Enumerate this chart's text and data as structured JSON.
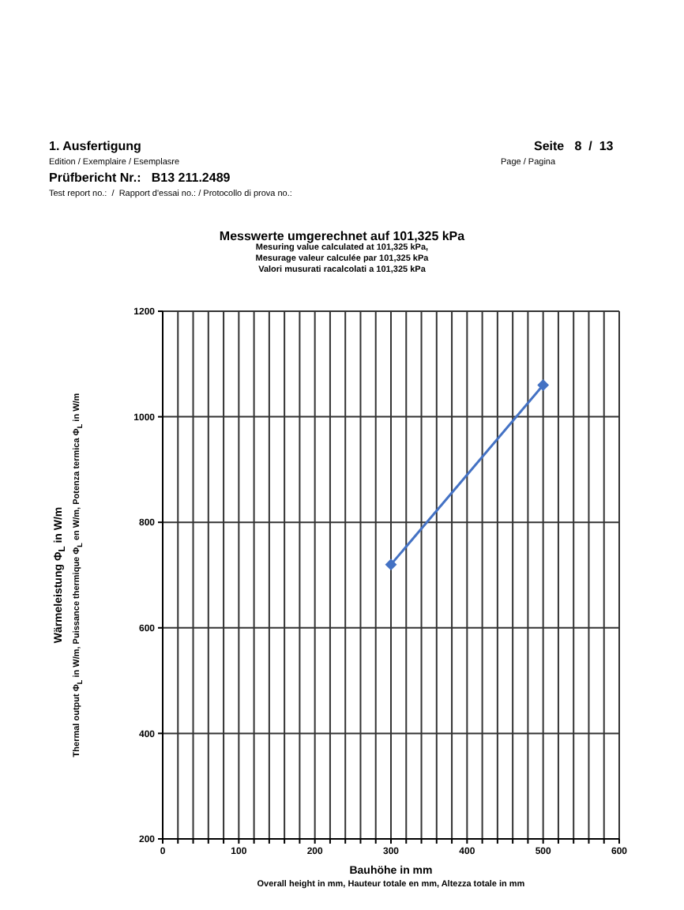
{
  "chart_data": {
    "type": "line",
    "title": "Messwerte umgerechnet auf 101,325 kPa",
    "subtitle": "Mesuring value calculated at 101,325 kPa,\nMesurage valeur calculée par 101,325 kPa\nValori musurati racalcolati a 101,325 kPa",
    "annotations": [
      "1. Ausfertigung",
      "Edition / Exemplaire / Esemplasre",
      "Prüfbericht Nr.:   B13 211.2489",
      "Test report no.:  /  Rapport d'essai no.: / Protocollo di prova no.:",
      "Seite   8  /  13",
      "Page / Pagina"
    ],
    "xlabel": "Bauhöhe in mm\nOverall height in mm, Hauteur totale en mm, Altezza totale in mm",
    "ylabel": "Wärmeleistung Φ$_{L}$ in W/m\nThermal output Φ$_{L}$ in W/m, Puissance thermique Φ$_{L}$ en W/m, Potenza termica Φ$_{L}$ in W/m",
    "x": [
      300,
      500
    ],
    "series": [
      {
        "color": "#4472c4",
        "values": [
          720,
          1060
        ]
      }
    ],
    "xlim": [
      0,
      600
    ],
    "xticks": [
      0,
      {
        "value": 20,
        "label": null
      },
      {
        "value": 40,
        "label": null
      },
      {
        "value": 60,
        "label": null
      },
      {
        "value": 80,
        "label": null
      },
      100,
      {
        "value": 120,
        "label": null
      },
      {
        "value": 140,
        "label": null
      },
      {
        "value": 160,
        "label": null
      },
      {
        "value": 180,
        "label": null
      },
      200,
      {
        "value": 220,
        "label": null
      },
      {
        "value": 240,
        "label": null
      },
      {
        "value": 260,
        "label": null
      },
      {
        "value": 280,
        "label": null
      },
      300,
      {
        "value": 320,
        "label": null
      },
      {
        "value": 340,
        "label": null
      },
      {
        "value": 360,
        "label": null
      },
      {
        "value": 380,
        "label": null
      },
      400,
      {
        "value": 420,
        "label": null
      },
      {
        "value": 440,
        "label": null
      },
      {
        "value": 460,
        "label": null
      },
      {
        "value": 480,
        "label": null
      },
      500,
      {
        "value": 520,
        "label": null
      },
      {
        "value": 540,
        "label": null
      },
      {
        "value": 560,
        "label": null
      },
      {
        "value": 580,
        "label": null
      },
      600
    ],
    "ylim": [
      200,
      1200
    ],
    "yticks": [
      200,
      400,
      600,
      800,
      1000,
      1200
    ],
    "grid": true,
    "marker": "diamond",
    "line_style": "solid"
  }
}
